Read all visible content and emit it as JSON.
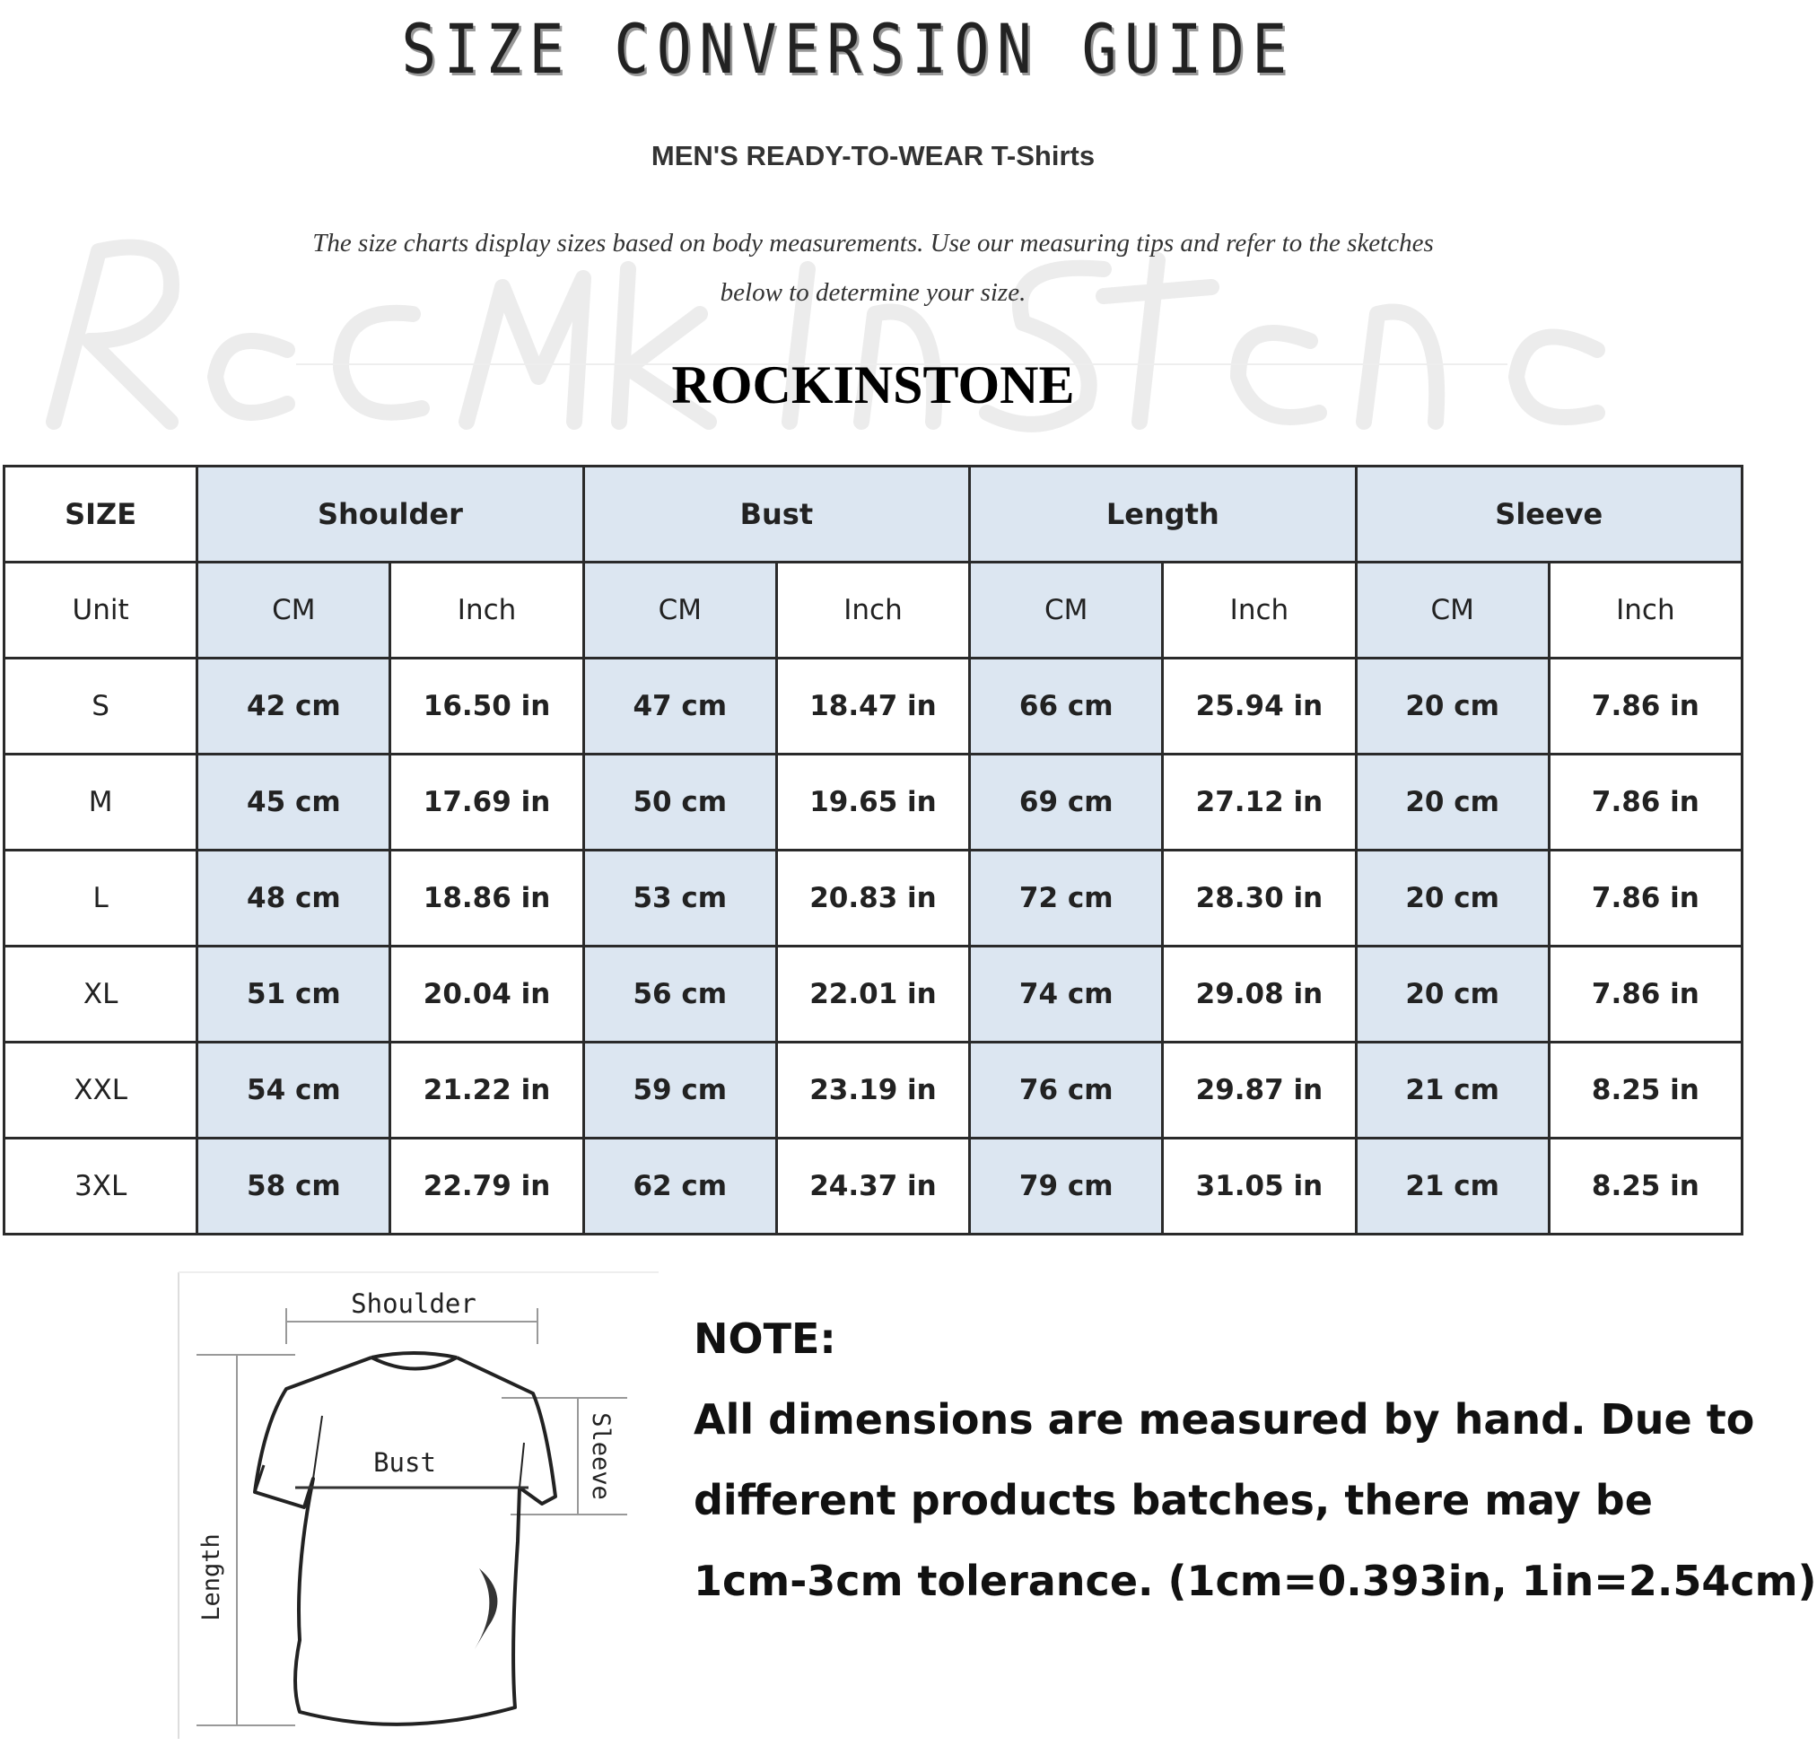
{
  "header": {
    "title": "SIZE CONVERSION GUIDE",
    "subtitle": "MEN'S READY-TO-WEAR T-Shirts",
    "description_line1": "The size charts display sizes based on body measurements. Use our measuring tips and refer to the sketches",
    "description_line2": "below to determine your size.",
    "watermark": "Rock In Stone",
    "brand": "ROCKINSTONE"
  },
  "table": {
    "size_label": "SIZE",
    "groups": [
      "Shoulder",
      "Bust",
      "Length",
      "Sleeve"
    ],
    "unit_label": "Unit",
    "units": [
      "CM",
      "Inch",
      "CM",
      "Inch",
      "CM",
      "Inch",
      "CM",
      "Inch"
    ],
    "rows": [
      {
        "size": "S",
        "values": [
          "42 cm",
          "16.50 in",
          "47 cm",
          "18.47 in",
          "66 cm",
          "25.94 in",
          "20 cm",
          "7.86 in"
        ]
      },
      {
        "size": "M",
        "values": [
          "45 cm",
          "17.69 in",
          "50 cm",
          "19.65 in",
          "69 cm",
          "27.12 in",
          "20 cm",
          "7.86 in"
        ]
      },
      {
        "size": "L",
        "values": [
          "48 cm",
          "18.86 in",
          "53 cm",
          "20.83 in",
          "72 cm",
          "28.30 in",
          "20 cm",
          "7.86 in"
        ]
      },
      {
        "size": "XL",
        "values": [
          "51 cm",
          "20.04 in",
          "56 cm",
          "22.01 in",
          "74 cm",
          "29.08 in",
          "20 cm",
          "7.86 in"
        ]
      },
      {
        "size": "XXL",
        "values": [
          "54 cm",
          "21.22 in",
          "59 cm",
          "23.19 in",
          "76 cm",
          "29.87 in",
          "21 cm",
          "8.25 in"
        ]
      },
      {
        "size": "3XL",
        "values": [
          "58 cm",
          "22.79 in",
          "62 cm",
          "24.37 in",
          "79 cm",
          "31.05 in",
          "21 cm",
          "8.25 in"
        ]
      }
    ],
    "header_fill": "#dce6f1"
  },
  "sketch": {
    "shoulder": "Shoulder",
    "bust": "Bust",
    "length": "Length",
    "sleeve": "Sleeve"
  },
  "note": {
    "heading": "NOTE:",
    "line1": "All dimensions are measured by hand. Due to",
    "line2": "different products batches, there may be",
    "line3": "1cm-3cm tolerance. (1cm=0.393in, 1in=2.54cm)"
  }
}
